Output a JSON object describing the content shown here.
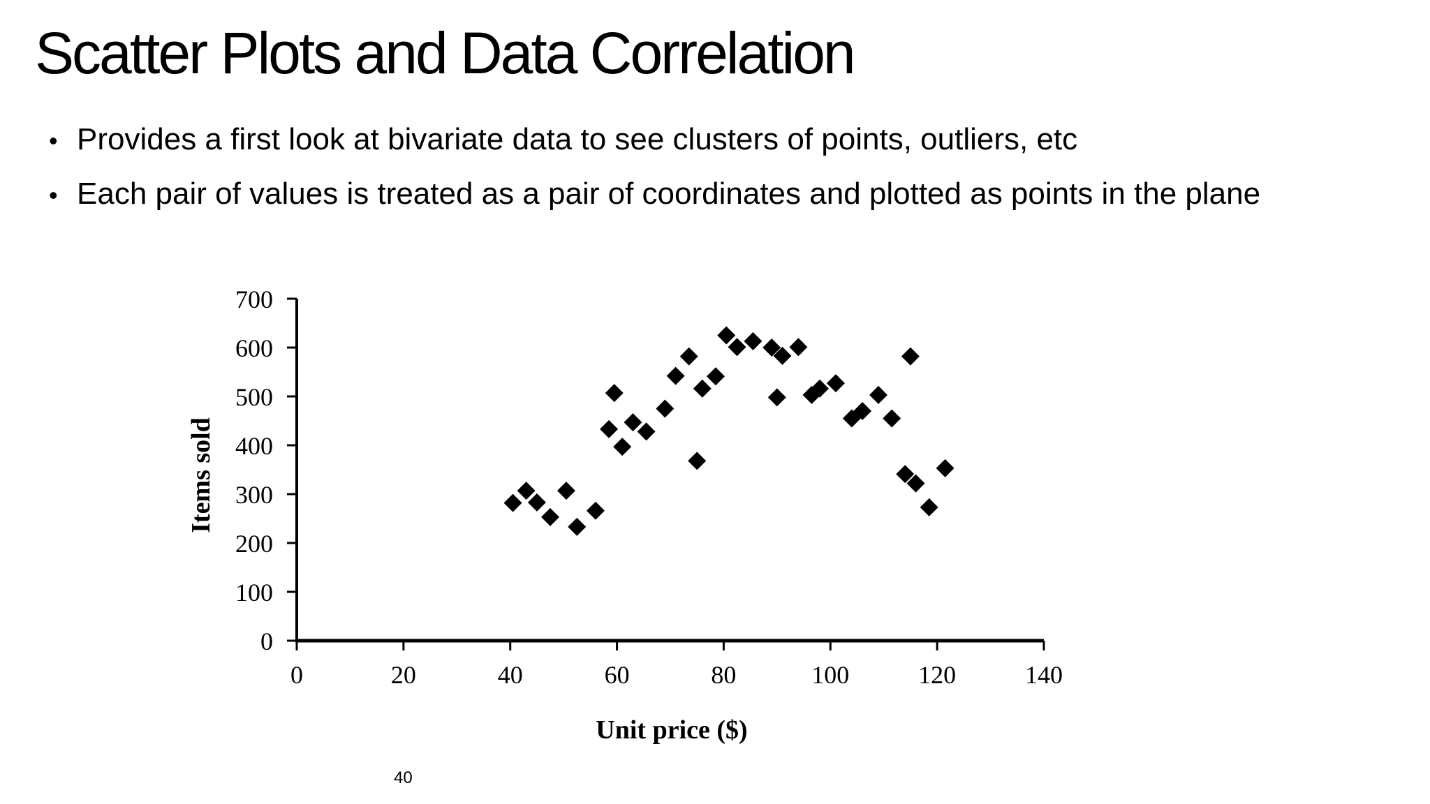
{
  "slide": {
    "title": "Scatter Plots and Data Correlation",
    "bullets": [
      "Provides a first look at bivariate data to see clusters of points, outliers, etc",
      "Each pair of values is treated as a pair of coordinates and plotted as points in the plane"
    ],
    "page_number": "40"
  },
  "chart_data": {
    "type": "scatter",
    "title": "",
    "xlabel": "Unit price ($)",
    "ylabel": "Items sold",
    "xlim": [
      0,
      140
    ],
    "ylim": [
      0,
      700
    ],
    "xticks": [
      0,
      20,
      40,
      60,
      80,
      100,
      120,
      140
    ],
    "yticks": [
      0,
      100,
      200,
      300,
      400,
      500,
      600,
      700
    ],
    "grid": false,
    "marker": "diamond",
    "marker_color": "#000000",
    "series": [
      {
        "points": [
          [
            40.5,
            282
          ],
          [
            43,
            307
          ],
          [
            45,
            283
          ],
          [
            47.5,
            253
          ],
          [
            50.5,
            307
          ],
          [
            52.5,
            233
          ],
          [
            56,
            266
          ],
          [
            58.5,
            433
          ],
          [
            59.5,
            507
          ],
          [
            61,
            397
          ],
          [
            63,
            447
          ],
          [
            65.5,
            428
          ],
          [
            69,
            475
          ],
          [
            71,
            542
          ],
          [
            73.5,
            582
          ],
          [
            75,
            368
          ],
          [
            76,
            516
          ],
          [
            78.5,
            541
          ],
          [
            80.5,
            625
          ],
          [
            82.5,
            601
          ],
          [
            85.5,
            613
          ],
          [
            89,
            600
          ],
          [
            90,
            498
          ],
          [
            91,
            583
          ],
          [
            94,
            601
          ],
          [
            96.5,
            503
          ],
          [
            98,
            516
          ],
          [
            101,
            527
          ],
          [
            104,
            455
          ],
          [
            106,
            470
          ],
          [
            109,
            503
          ],
          [
            111.5,
            455
          ],
          [
            114,
            341
          ],
          [
            115,
            582
          ],
          [
            116,
            322
          ],
          [
            118.5,
            273
          ],
          [
            121.5,
            353
          ]
        ]
      }
    ]
  }
}
